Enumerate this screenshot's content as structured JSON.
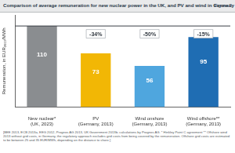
{
  "chart_data": {
    "type": "bar",
    "title": "Comparison of average remuneration for new nuclear power in the UK, and PV and wind in Germany",
    "figure_label": "Figure 2",
    "y_label": "Remuneration, in EUR₂₀₁₃/MWh",
    "categories": [
      "New nuclear* (UK, 2023)",
      "PV (Germany, 2013)",
      "Wind onshore (Germany, 2013)",
      "Wind offshore** (Germany, 2013)"
    ],
    "values": [
      110,
      73,
      56,
      95
    ],
    "colors": [
      "#8a8d90",
      "#f2b705",
      "#4fa6de",
      "#1f6db3"
    ],
    "annotations": [
      null,
      "-34%",
      "-50%",
      "-15%"
    ],
    "reference_line": 110,
    "ylim": [
      0,
      125
    ],
    "tick_labels": "x",
    "grid": false,
    "data_labels": true,
    "source": "[BEE 2013, ECB 2013a, EEG 2012, Prognos AG 2013, UK Government 2013b; calculations by Prognos AG. * Hinkley Point C agreement ** Offshore wind 2013 without grid costs, in Germany, the regulatory approach excludes grid costs from being covered by the remuneration. Offshore grid costs are estimated to be between 25 and 35 EUR/MWh, depending on the distance to shore.]"
  }
}
